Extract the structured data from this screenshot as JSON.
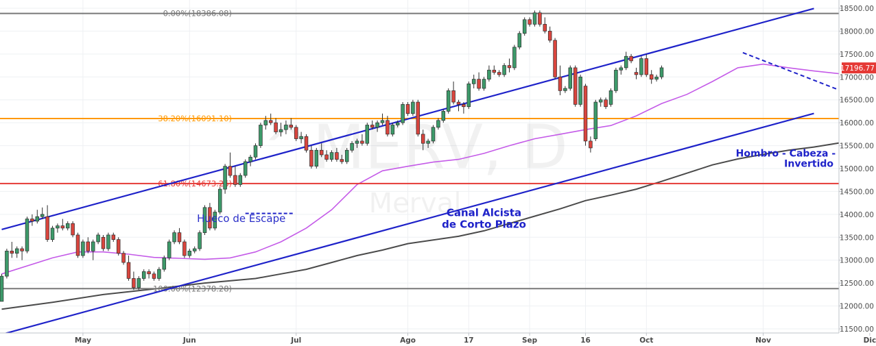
{
  "chart_data": {
    "type": "candlestick",
    "watermark": {
      "symbol": "^MERV, D",
      "name": "Merval"
    },
    "y_axis": {
      "ylim": [
        11400,
        18600
      ],
      "ticks": [
        11500,
        12000,
        12500,
        13000,
        13500,
        14000,
        14500,
        15000,
        15500,
        16000,
        16500,
        17000,
        17500,
        18000,
        18500
      ],
      "tick_labels": [
        "11500.00",
        "12000.00",
        "12500.00",
        "13000.00",
        "13500.00",
        "14000.00",
        "14500.00",
        "15000.00",
        "15500.00",
        "16000.00",
        "16500.00",
        "17000.00",
        "17500.00",
        "18000.00",
        "18500.00"
      ],
      "position": "right"
    },
    "last_price": {
      "label": "17196.77",
      "value": 17196.77,
      "color": "#e53935"
    },
    "x_axis": {
      "ticks": [
        {
          "label": "May",
          "index": 16
        },
        {
          "label": "Jun",
          "index": 37
        },
        {
          "label": "Jul",
          "index": 58
        },
        {
          "label": "Ago",
          "index": 80
        },
        {
          "label": "17",
          "index": 92
        },
        {
          "label": "Sep",
          "index": 104
        },
        {
          "label": "16",
          "index": 115
        },
        {
          "label": "Oct",
          "index": 127
        },
        {
          "label": "Nov",
          "index": 150
        },
        {
          "label": "Dic",
          "index": 171
        }
      ]
    },
    "fib_levels": [
      {
        "label": "0.00%(18386.08)",
        "value": 18386.08,
        "color": "#787878",
        "label_color": "#787878"
      },
      {
        "label": "38.20%(16091.10)",
        "value": 16091.1,
        "color": "#ff9800",
        "label_color": "#ff9800"
      },
      {
        "label": "61.80%(14673.26)",
        "value": 14673.26,
        "color": "#e53935",
        "label_color": "#e53935"
      },
      {
        "label": "100.00%(12378.28)",
        "value": 12378.28,
        "color": "#787878",
        "label_color": "#787878"
      }
    ],
    "channel": {
      "color": "#1e22c9",
      "upper": [
        {
          "x": 0,
          "y": 13670
        },
        {
          "x": 100,
          "y": 16685
        }
      ],
      "lower": [
        {
          "x": 0,
          "y": 11380
        },
        {
          "x": 100,
          "y": 14395
        }
      ]
    },
    "trendline_dashed": {
      "color": "#1e22c9",
      "points": [
        {
          "x": 146,
          "y": 17530
        },
        {
          "x": 166,
          "y": 16670
        }
      ]
    },
    "gap_line": {
      "color": "#1e22c9",
      "points": [
        {
          "x": 48,
          "y": 14020
        },
        {
          "x": 57.5,
          "y": 14020
        }
      ]
    },
    "annotations": [
      {
        "text": "Hueco de Escape",
        "x": 47.2,
        "y": 13835,
        "color": "#2a2ec8",
        "style": "normal"
      },
      {
        "text": "Canal Alcista",
        "x": 95,
        "y": 13960,
        "color": "#1e22c9",
        "style": "bold"
      },
      {
        "text": "de Corto Plazo",
        "x": 95,
        "y": 13705,
        "color": "#1e22c9",
        "style": "bold"
      },
      {
        "text": "Hombro - Cabeza - Hombro",
        "x": 159,
        "y": 15265,
        "color": "#1e22c9",
        "style": "bold"
      },
      {
        "text": "Invertido",
        "x": 159,
        "y": 15035,
        "color": "#1e22c9",
        "style": "bold"
      }
    ],
    "ma_fast": {
      "name": "",
      "color": "#c45ae8",
      "points": [
        [
          0,
          12700
        ],
        [
          10,
          13050
        ],
        [
          15,
          13180
        ],
        [
          20,
          13180
        ],
        [
          25,
          13130
        ],
        [
          30,
          13060
        ],
        [
          35,
          13040
        ],
        [
          40,
          13020
        ],
        [
          45,
          13050
        ],
        [
          50,
          13180
        ],
        [
          55,
          13400
        ],
        [
          60,
          13700
        ],
        [
          65,
          14100
        ],
        [
          70,
          14650
        ],
        [
          75,
          14950
        ],
        [
          80,
          15050
        ],
        [
          85,
          15140
        ],
        [
          90,
          15200
        ],
        [
          95,
          15330
        ],
        [
          100,
          15500
        ],
        [
          105,
          15650
        ],
        [
          110,
          15750
        ],
        [
          115,
          15850
        ],
        [
          120,
          15940
        ],
        [
          125,
          16150
        ],
        [
          130,
          16420
        ],
        [
          135,
          16620
        ],
        [
          140,
          16900
        ],
        [
          145,
          17200
        ],
        [
          150,
          17280
        ],
        [
          155,
          17200
        ],
        [
          160,
          17130
        ],
        [
          165,
          17070
        ],
        [
          170,
          17100
        ],
        [
          176,
          17060
        ]
      ]
    },
    "ma_slow": {
      "name": "",
      "color": "#4a4a4a",
      "points": [
        [
          0,
          11930
        ],
        [
          10,
          12080
        ],
        [
          20,
          12250
        ],
        [
          30,
          12370
        ],
        [
          40,
          12500
        ],
        [
          50,
          12600
        ],
        [
          55,
          12700
        ],
        [
          60,
          12800
        ],
        [
          65,
          12950
        ],
        [
          70,
          13100
        ],
        [
          75,
          13220
        ],
        [
          80,
          13360
        ],
        [
          85,
          13440
        ],
        [
          90,
          13520
        ],
        [
          95,
          13640
        ],
        [
          100,
          13800
        ],
        [
          105,
          13960
        ],
        [
          110,
          14120
        ],
        [
          115,
          14300
        ],
        [
          120,
          14420
        ],
        [
          125,
          14550
        ],
        [
          130,
          14720
        ],
        [
          135,
          14900
        ],
        [
          140,
          15080
        ],
        [
          145,
          15210
        ],
        [
          150,
          15310
        ],
        [
          155,
          15400
        ],
        [
          160,
          15470
        ],
        [
          165,
          15560
        ],
        [
          170,
          15700
        ],
        [
          176,
          15840
        ]
      ]
    },
    "candles_ohlc": [
      [
        12100,
        12700,
        12100,
        12650
      ],
      [
        12650,
        13250,
        12600,
        13200
      ],
      [
        13200,
        13400,
        13050,
        13150
      ],
      [
        13150,
        13300,
        13050,
        13250
      ],
      [
        13250,
        13300,
        13000,
        13200
      ],
      [
        13200,
        13950,
        13150,
        13900
      ],
      [
        13900,
        14000,
        13750,
        13850
      ],
      [
        13850,
        14100,
        13800,
        13950
      ],
      [
        13950,
        14150,
        13900,
        14000
      ],
      [
        13950,
        14200,
        13400,
        13450
      ],
      [
        13450,
        13750,
        13400,
        13700
      ],
      [
        13700,
        13800,
        13600,
        13750
      ],
      [
        13750,
        13900,
        13650,
        13700
      ],
      [
        13700,
        13850,
        13650,
        13800
      ],
      [
        13800,
        13850,
        13500,
        13550
      ],
      [
        13550,
        13600,
        13050,
        13100
      ],
      [
        13100,
        13450,
        13050,
        13400
      ],
      [
        13400,
        13500,
        13150,
        13200
      ],
      [
        13200,
        13450,
        13000,
        13400
      ],
      [
        13400,
        13600,
        13350,
        13550
      ],
      [
        13500,
        13550,
        13200,
        13250
      ],
      [
        13250,
        13600,
        13200,
        13550
      ],
      [
        13550,
        13600,
        13400,
        13450
      ],
      [
        13450,
        13500,
        13100,
        13150
      ],
      [
        13150,
        13200,
        12900,
        12950
      ],
      [
        12950,
        13100,
        12550,
        12600
      ],
      [
        12600,
        12750,
        12350,
        12400
      ],
      [
        12400,
        12650,
        12350,
        12600
      ],
      [
        12600,
        12800,
        12550,
        12750
      ],
      [
        12750,
        12800,
        12600,
        12700
      ],
      [
        12700,
        12750,
        12550,
        12600
      ],
      [
        12600,
        12850,
        12550,
        12800
      ],
      [
        12800,
        13100,
        12750,
        13050
      ],
      [
        13050,
        13450,
        13000,
        13400
      ],
      [
        13400,
        13650,
        13350,
        13600
      ],
      [
        13600,
        13700,
        13350,
        13400
      ],
      [
        13400,
        13450,
        13050,
        13100
      ],
      [
        13100,
        13250,
        13050,
        13200
      ],
      [
        13200,
        13300,
        13150,
        13250
      ],
      [
        13250,
        13650,
        13200,
        13600
      ],
      [
        13600,
        14200,
        13550,
        14150
      ],
      [
        14150,
        14250,
        13650,
        13700
      ],
      [
        13700,
        14100,
        13650,
        14050
      ],
      [
        14050,
        14600,
        14000,
        14550
      ],
      [
        14550,
        15100,
        14450,
        15050
      ],
      [
        15050,
        15350,
        14800,
        14850
      ],
      [
        14850,
        15050,
        14600,
        14650
      ],
      [
        14650,
        14900,
        14600,
        14850
      ],
      [
        14850,
        15200,
        14800,
        15150
      ],
      [
        15150,
        15300,
        15050,
        15250
      ],
      [
        15250,
        15550,
        15200,
        15500
      ],
      [
        15500,
        16000,
        15450,
        15950
      ],
      [
        15950,
        16150,
        15850,
        16050
      ],
      [
        16050,
        16200,
        15950,
        16000
      ],
      [
        16000,
        16100,
        15750,
        15800
      ],
      [
        15800,
        16000,
        15700,
        15850
      ],
      [
        15850,
        16050,
        15750,
        15950
      ],
      [
        15950,
        16100,
        15850,
        15900
      ],
      [
        15900,
        15950,
        15600,
        15650
      ],
      [
        15650,
        15800,
        15550,
        15700
      ],
      [
        15700,
        15750,
        15350,
        15400
      ],
      [
        15400,
        15500,
        15000,
        15050
      ],
      [
        15050,
        15450,
        15000,
        15400
      ],
      [
        15400,
        15550,
        15250,
        15300
      ],
      [
        15300,
        15400,
        15150,
        15200
      ],
      [
        15200,
        15400,
        15150,
        15350
      ],
      [
        15350,
        15450,
        15150,
        15200
      ],
      [
        15200,
        15300,
        15100,
        15150
      ],
      [
        15150,
        15450,
        15100,
        15400
      ],
      [
        15400,
        15600,
        15350,
        15550
      ],
      [
        15550,
        15650,
        15450,
        15600
      ],
      [
        15600,
        15750,
        15500,
        15550
      ],
      [
        15550,
        16000,
        15500,
        15950
      ],
      [
        15950,
        16050,
        15850,
        15900
      ],
      [
        15900,
        16050,
        15800,
        16000
      ],
      [
        16000,
        16200,
        15950,
        16050
      ],
      [
        16050,
        16150,
        15700,
        15750
      ],
      [
        15750,
        16000,
        15700,
        15950
      ],
      [
        15950,
        16050,
        15900,
        16000
      ],
      [
        16000,
        16450,
        15950,
        16400
      ],
      [
        16400,
        16450,
        16150,
        16200
      ],
      [
        16200,
        16500,
        16150,
        16450
      ],
      [
        16450,
        16500,
        15700,
        15750
      ],
      [
        15750,
        15850,
        15400,
        15550
      ],
      [
        15550,
        15650,
        15450,
        15600
      ],
      [
        15600,
        15950,
        15550,
        15900
      ],
      [
        15900,
        16100,
        15850,
        16050
      ],
      [
        16050,
        16300,
        16000,
        16250
      ],
      [
        16250,
        16750,
        16200,
        16700
      ],
      [
        16700,
        16900,
        16400,
        16450
      ],
      [
        16450,
        16500,
        16250,
        16400
      ],
      [
        16400,
        16450,
        16200,
        16350
      ],
      [
        16350,
        16900,
        16300,
        16850
      ],
      [
        16850,
        17050,
        16750,
        16950
      ],
      [
        16950,
        17100,
        16700,
        16750
      ],
      [
        16750,
        17000,
        16700,
        16950
      ],
      [
        16950,
        17250,
        16900,
        17150
      ],
      [
        17150,
        17250,
        17050,
        17100
      ],
      [
        17100,
        17150,
        17000,
        17050
      ],
      [
        17050,
        17300,
        17000,
        17250
      ],
      [
        17250,
        17400,
        17100,
        17200
      ],
      [
        17200,
        17700,
        17150,
        17650
      ],
      [
        17650,
        18000,
        17600,
        17950
      ],
      [
        17950,
        18300,
        17900,
        18250
      ],
      [
        18250,
        18300,
        18100,
        18150
      ],
      [
        18150,
        18450,
        18100,
        18400
      ],
      [
        18400,
        18450,
        18100,
        18150
      ],
      [
        18150,
        18300,
        17950,
        18000
      ],
      [
        18000,
        18100,
        17750,
        17800
      ],
      [
        17800,
        17850,
        16950,
        17000
      ],
      [
        17000,
        17250,
        16600,
        16700
      ],
      [
        16700,
        16800,
        16650,
        16750
      ],
      [
        16750,
        17250,
        16700,
        17200
      ],
      [
        17200,
        17250,
        16350,
        16400
      ],
      [
        16400,
        17050,
        16350,
        17000
      ],
      [
        16800,
        16850,
        15500,
        15600
      ],
      [
        15600,
        15700,
        15350,
        15450
      ],
      [
        15650,
        16500,
        15600,
        16450
      ],
      [
        16450,
        16550,
        16350,
        16500
      ],
      [
        16500,
        16550,
        16300,
        16350
      ],
      [
        16400,
        16750,
        16350,
        16700
      ],
      [
        16700,
        17200,
        16650,
        17150
      ],
      [
        17150,
        17250,
        17050,
        17200
      ],
      [
        17200,
        17550,
        17150,
        17450
      ],
      [
        17450,
        17500,
        17300,
        17350
      ],
      [
        17100,
        17200,
        16950,
        17050
      ],
      [
        17050,
        17450,
        17000,
        17400
      ],
      [
        17400,
        17500,
        17000,
        17050
      ],
      [
        17050,
        17150,
        16850,
        16950
      ],
      [
        16950,
        17050,
        16900,
        17000
      ],
      [
        17000,
        17250,
        16950,
        17200
      ]
    ]
  }
}
